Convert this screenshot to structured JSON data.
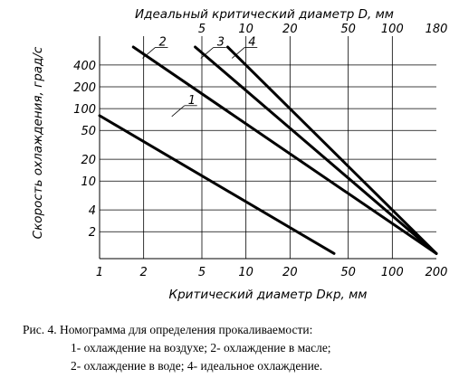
{
  "chart_data": {
    "type": "line",
    "title": "Идеальный критический диаметр D, мм",
    "xlabel": "Критический диаметр Dкр, мм",
    "ylabel": "Скорость охлаждения, град/с",
    "x_scale": "log",
    "y_scale": "log",
    "xlim": [
      1,
      200
    ],
    "ylim": [
      0.85,
      1000
    ],
    "x_ticks": [
      1,
      2,
      5,
      10,
      20,
      50,
      100,
      200
    ],
    "x_tick_labels": [
      "1",
      "2",
      "5",
      "10",
      "20",
      "50",
      "100",
      "200"
    ],
    "y_ticks": [
      2,
      4,
      10,
      20,
      50,
      100,
      200,
      400
    ],
    "y_tick_labels": [
      "2",
      "4",
      "10",
      "20",
      "50",
      "100",
      "200",
      "400"
    ],
    "top_ticks": [
      5,
      10,
      20,
      50,
      100,
      180
    ],
    "top_tick_labels": [
      "5",
      "10",
      "20",
      "50",
      "100",
      "180"
    ],
    "grid": true,
    "series": [
      {
        "name": "1",
        "x": [
          1,
          40
        ],
        "y": [
          80,
          1.0
        ]
      },
      {
        "name": "2",
        "x": [
          1.7,
          200
        ],
        "y": [
          1000,
          1.0
        ]
      },
      {
        "name": "3",
        "x": [
          4.5,
          200
        ],
        "y": [
          1000,
          1.0
        ]
      },
      {
        "name": "4",
        "x": [
          7.5,
          200
        ],
        "y": [
          1000,
          1.0
        ]
      }
    ],
    "series_label_points": [
      {
        "name": "1",
        "x": 3.8,
        "y": 110
      },
      {
        "name": "2",
        "x": 2.4,
        "y": 700
      },
      {
        "name": "3",
        "x": 6.0,
        "y": 700
      },
      {
        "name": "4",
        "x": 9.8,
        "y": 700
      }
    ]
  },
  "caption": {
    "line1": "Рис. 4. Номограмма для определения прокаливаемости:",
    "line2": "1-   охлаждение на воздухе; 2- охлаждение в масле;",
    "line3": "2-   охлаждение в воде; 4- идеальное охлаждение."
  }
}
